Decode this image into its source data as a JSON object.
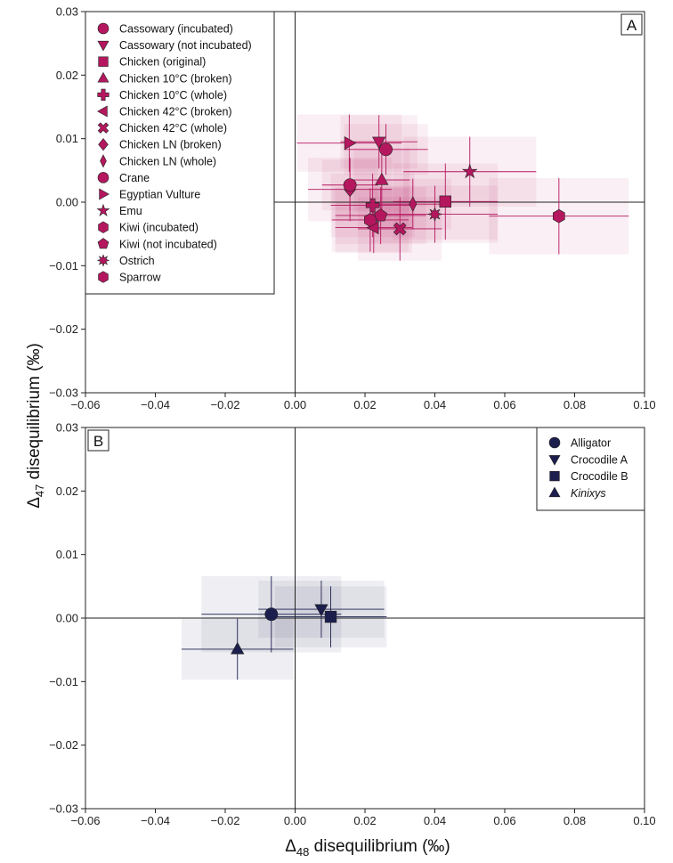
{
  "chart_data": [
    {
      "type": "scatter",
      "panel_label": "A",
      "xlim": [
        -0.06,
        0.1
      ],
      "ylim": [
        -0.03,
        0.03
      ],
      "xticks": [
        "−0.06",
        "−0.04",
        "−0.02",
        "0.00",
        "0.02",
        "0.04",
        "0.06",
        "0.08",
        "0.10"
      ],
      "yticks": [
        "−0.03",
        "−0.02",
        "−0.01",
        "0.00",
        "0.01",
        "0.02",
        "0.03"
      ],
      "legend_position": "top-left",
      "color": "#b5175f",
      "series": [
        {
          "name": "Cassowary (incubated)",
          "marker": "circle",
          "x": 0.026,
          "y": 0.0083,
          "xerr": 0.012,
          "yerr": 0.004
        },
        {
          "name": "Cassowary (not incubated)",
          "marker": "triangle-down",
          "x": 0.024,
          "y": 0.0095,
          "xerr": 0.011,
          "yerr": 0.0042
        },
        {
          "name": "Chicken (original)",
          "marker": "square",
          "x": 0.043,
          "y": 0.0001,
          "xerr": 0.015,
          "yerr": 0.006
        },
        {
          "name": "Chicken 10°C (broken)",
          "marker": "triangle-up",
          "x": 0.0248,
          "y": 0.0035,
          "xerr": 0.008,
          "yerr": 0.005
        },
        {
          "name": "Chicken 10°C (whole)",
          "marker": "plus",
          "x": 0.0222,
          "y": -0.0005,
          "xerr": 0.012,
          "yerr": 0.005
        },
        {
          "name": "Chicken 42°C (broken)",
          "marker": "triangle-left",
          "x": 0.0225,
          "y": -0.004,
          "xerr": 0.011,
          "yerr": 0.004
        },
        {
          "name": "Chicken 42°C (whole)",
          "marker": "x",
          "x": 0.03,
          "y": -0.0042,
          "xerr": 0.012,
          "yerr": 0.005
        },
        {
          "name": "Chicken LN (broken)",
          "marker": "diamond",
          "x": 0.0157,
          "y": 0.002,
          "xerr": 0.012,
          "yerr": 0.005
        },
        {
          "name": "Chicken LN (whole)",
          "marker": "diamond-thin",
          "x": 0.0337,
          "y": -0.0003,
          "xerr": 0.011,
          "yerr": 0.004
        },
        {
          "name": "Crane",
          "marker": "circle",
          "x": 0.0157,
          "y": 0.0027,
          "xerr": 0.008,
          "yerr": 0.004
        },
        {
          "name": "Egyptian Vulture",
          "marker": "triangle-right",
          "x": 0.0155,
          "y": 0.0093,
          "xerr": 0.015,
          "yerr": 0.0045
        },
        {
          "name": "Emu",
          "marker": "star",
          "x": 0.05,
          "y": 0.0048,
          "xerr": 0.019,
          "yerr": 0.0055
        },
        {
          "name": "Kiwi (incubated)",
          "marker": "hexagon",
          "x": 0.0215,
          "y": -0.0028,
          "xerr": 0.011,
          "yerr": 0.005
        },
        {
          "name": "Kiwi (not incubated)",
          "marker": "pentagon",
          "x": 0.0245,
          "y": -0.0021,
          "xerr": 0.013,
          "yerr": 0.0045
        },
        {
          "name": "Ostrich",
          "marker": "burst",
          "x": 0.04,
          "y": -0.0019,
          "xerr": 0.018,
          "yerr": 0.0045
        },
        {
          "name": "Sparrow",
          "marker": "hexagon",
          "x": 0.0755,
          "y": -0.0022,
          "xerr": 0.02,
          "yerr": 0.006
        }
      ]
    },
    {
      "type": "scatter",
      "panel_label": "B",
      "xlim": [
        -0.06,
        0.1
      ],
      "ylim": [
        -0.03,
        0.03
      ],
      "xticks": [
        "−0.06",
        "−0.04",
        "−0.02",
        "0.00",
        "0.02",
        "0.04",
        "0.06",
        "0.08",
        "0.10"
      ],
      "yticks": [
        "−0.03",
        "−0.02",
        "−0.01",
        "0.00",
        "0.01",
        "0.02",
        "0.03"
      ],
      "legend_position": "top-right",
      "color": "#1c1f4e",
      "series": [
        {
          "name": "Alligator",
          "marker": "circle",
          "x": -0.0068,
          "y": 0.0006,
          "xerr": 0.02,
          "yerr": 0.006
        },
        {
          "name": "Crocodile A",
          "marker": "triangle-down",
          "x": 0.0075,
          "y": 0.0014,
          "xerr": 0.018,
          "yerr": 0.0045
        },
        {
          "name": "Crocodile B",
          "marker": "square",
          "x": 0.0102,
          "y": 0.0002,
          "xerr": 0.016,
          "yerr": 0.0048
        },
        {
          "name": "Kinixys",
          "marker": "triangle-up",
          "x": -0.0165,
          "y": -0.0049,
          "xerr": 0.016,
          "yerr": 0.0048,
          "italic": true
        }
      ]
    }
  ],
  "axes": {
    "ylabel_symbol": "Δ",
    "ylabel_sub": "47",
    "ylabel_rest": " disequilibrium (‰)",
    "xlabel_symbol": "Δ",
    "xlabel_sub": "48",
    "xlabel_rest": " disequilibrium (‰)"
  }
}
